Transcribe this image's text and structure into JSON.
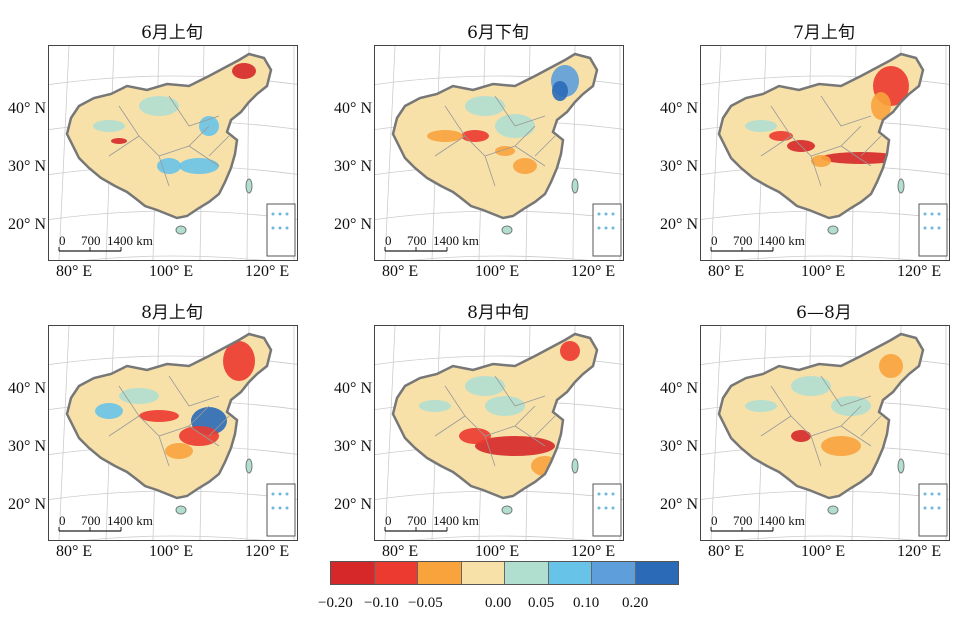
{
  "panels": [
    {
      "title": "6月上旬"
    },
    {
      "title": "6月下旬"
    },
    {
      "title": "7月上旬"
    },
    {
      "title": "8月上旬"
    },
    {
      "title": "8月中旬"
    },
    {
      "title": "6—8月"
    }
  ],
  "axes": {
    "lat_labels": [
      "40° N",
      "30° N",
      "20° N"
    ],
    "lon_labels": [
      "80° E",
      "100° E",
      "120° E"
    ]
  },
  "scale_bar": {
    "labels": [
      "0",
      "700",
      "1400 km"
    ]
  },
  "legend": {
    "colors": [
      "#d62828",
      "#ec3a30",
      "#f8a33c",
      "#f7e1a9",
      "#b0dfd0",
      "#68c3e8",
      "#5e9fdb",
      "#2a6ab7"
    ],
    "labels": [
      "−0.20",
      "−0.10",
      "−0.05",
      "0.00",
      "0.05",
      "0.10",
      "0.20"
    ]
  }
}
